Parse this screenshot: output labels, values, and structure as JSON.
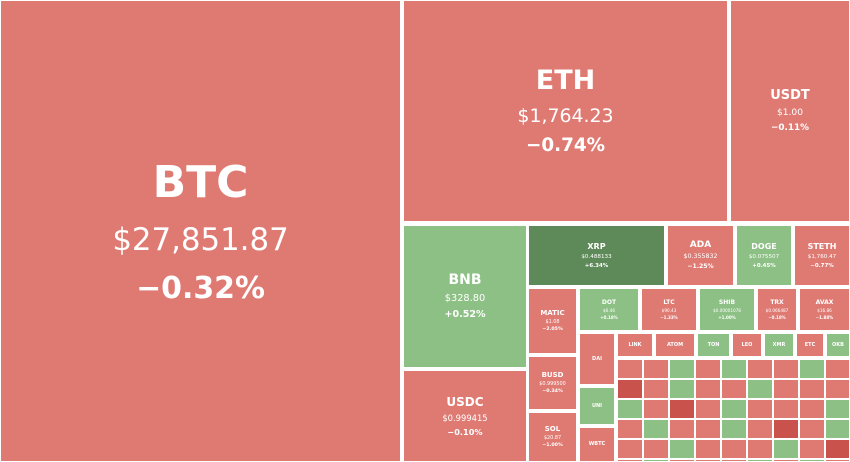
{
  "tiles": [
    {
      "symbol": "BTC",
      "price": "$27,851.87",
      "change": "−0.32%"
    },
    {
      "symbol": "ETH",
      "price": "$1,764.23",
      "change": "−0.74%"
    },
    {
      "symbol": "USDT",
      "price": "$1.00",
      "change": "−0.11%"
    },
    {
      "symbol": "BNB",
      "price": "$328.80",
      "change": "+0.52%"
    },
    {
      "symbol": "USDC",
      "price": "$0.999415",
      "change": "−0.10%"
    },
    {
      "symbol": "XRP",
      "price": "$0.488133",
      "change": "+6.34%"
    },
    {
      "symbol": "ADA",
      "price": "$0.355832",
      "change": "−1.25%"
    },
    {
      "symbol": "DOGE",
      "price": "$0.075507",
      "change": "+0.45%"
    },
    {
      "symbol": "STETH",
      "price": "$1,760.47",
      "change": "−0.77%"
    },
    {
      "symbol": "MATIC",
      "price": "$1.08",
      "change": "−2.05%"
    },
    {
      "symbol": "BUSD",
      "price": "$0.999500",
      "change": "−0.34%"
    },
    {
      "symbol": "SOL",
      "price": "$20.87",
      "change": "−1.00%"
    },
    {
      "symbol": "DOT",
      "price": "$6.46",
      "change": "+0.18%"
    },
    {
      "symbol": "LTC",
      "price": "$90.43",
      "change": "−1.33%"
    },
    {
      "symbol": "SHIB",
      "price": "$0.00001078",
      "change": "+1.00%"
    },
    {
      "symbol": "TRX",
      "price": "$0.066487",
      "change": "−0.18%"
    },
    {
      "symbol": "AVAX",
      "price": "$16.86",
      "change": "−1.88%"
    },
    {
      "symbol": "DAI"
    },
    {
      "symbol": "LINK"
    },
    {
      "symbol": "ATOM"
    },
    {
      "symbol": "TON"
    },
    {
      "symbol": "LEO"
    },
    {
      "symbol": "XMR"
    },
    {
      "symbol": "ETC"
    },
    {
      "symbol": "OKB"
    },
    {
      "symbol": "UNI"
    },
    {
      "symbol": "WBTC"
    }
  ]
}
